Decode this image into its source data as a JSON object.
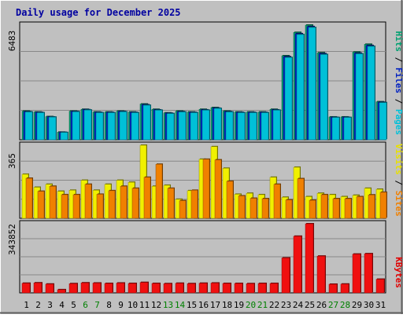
{
  "chart_data": {
    "type": "bar",
    "title": "Daily usage for December 2025",
    "categories": [
      "1",
      "2",
      "3",
      "4",
      "5",
      "6",
      "7",
      "8",
      "9",
      "10",
      "11",
      "12",
      "13",
      "14",
      "15",
      "16",
      "17",
      "18",
      "19",
      "20",
      "21",
      "22",
      "23",
      "24",
      "25",
      "26",
      "27",
      "28",
      "29",
      "30",
      "31"
    ],
    "weekend_days": [
      "6",
      "7",
      "13",
      "14",
      "20",
      "21",
      "27",
      "28"
    ],
    "panels": [
      {
        "id": "hits",
        "max_label": "6483",
        "ylim": [
          0,
          6483
        ],
        "axis_labels": [
          {
            "text": "Pages",
            "color": "#00c0d8"
          },
          {
            "text": "Files",
            "color": "#0020c0"
          },
          {
            "text": "Hits",
            "color": "#00a070"
          }
        ],
        "series": [
          {
            "name": "Hits",
            "color": "#00a070",
            "values": [
              1620,
              1570,
              1310,
              430,
              1620,
              1720,
              1570,
              1570,
              1620,
              1570,
              2020,
              1720,
              1520,
              1620,
              1570,
              1720,
              1820,
              1620,
              1570,
              1570,
              1570,
              1720,
              4750,
              6070,
              6483,
              4920,
              1290,
              1290,
              4960,
              5400,
              2150
            ]
          },
          {
            "name": "Files",
            "color": "#0020c0",
            "values": [
              1590,
              1550,
              1290,
              420,
              1600,
              1700,
              1550,
              1550,
              1600,
              1550,
              1980,
              1690,
              1500,
              1590,
              1550,
              1690,
              1790,
              1590,
              1550,
              1550,
              1550,
              1690,
              4700,
              6000,
              6400,
              4870,
              1270,
              1270,
              4900,
              5330,
              2120
            ]
          },
          {
            "name": "Pages",
            "color": "#00c0d8",
            "values": [
              1570,
              1530,
              1280,
              410,
              1580,
              1680,
              1530,
              1530,
              1580,
              1530,
              1950,
              1670,
              1480,
              1570,
              1530,
              1670,
              1770,
              1570,
              1530,
              1530,
              1530,
              1670,
              4650,
              5950,
              6350,
              4820,
              1260,
              1260,
              4860,
              5280,
              2100
            ]
          }
        ]
      },
      {
        "id": "visits",
        "max_label": "365",
        "ylim": [
          0,
          365
        ],
        "axis_labels": [
          {
            "text": "Sites",
            "color": "#f08000"
          },
          {
            "text": "Visits",
            "color": "#e8e000"
          }
        ],
        "series": [
          {
            "name": "Visits",
            "color": "#f0f000",
            "values": [
              220,
              155,
              170,
              135,
              140,
              190,
              140,
              170,
              190,
              180,
              365,
              160,
              165,
              95,
              138,
              295,
              358,
              250,
              120,
              125,
              118,
              205,
              105,
              255,
              108,
              125,
              118,
              108,
              115,
              150,
              145
            ]
          },
          {
            "name": "Sites",
            "color": "#f08000",
            "values": [
              200,
              135,
              160,
              118,
              118,
              170,
              120,
              138,
              160,
              150,
              205,
              270,
              150,
              88,
              140,
              295,
              292,
              185,
              112,
              100,
              98,
              170,
              92,
              198,
              90,
              118,
              98,
              98,
              108,
              117,
              130
            ]
          }
        ]
      },
      {
        "id": "kbytes",
        "max_label": "343852",
        "ylim": [
          0,
          343852
        ],
        "axis_labels": [
          {
            "text": "KBytes",
            "color": "#e00000"
          }
        ],
        "series": [
          {
            "name": "KBytes",
            "color": "#f01010",
            "values": [
              48000,
              50000,
              44000,
              16000,
              46000,
              50000,
              49000,
              47000,
              49000,
              47000,
              52000,
              47000,
              46000,
              48000,
              46000,
              48000,
              49000,
              47000,
              47000,
              46000,
              47000,
              47000,
              174000,
              282000,
              343852,
              183000,
              43000,
              44000,
              193000,
              195000,
              68000
            ]
          }
        ]
      }
    ]
  },
  "colors": {
    "background": "#c0c0c0",
    "plot_background": "#c0c0c0",
    "title": "#0000a0",
    "grid": "#888888",
    "tick_label": "#000000",
    "weekend_label": "#008000"
  }
}
